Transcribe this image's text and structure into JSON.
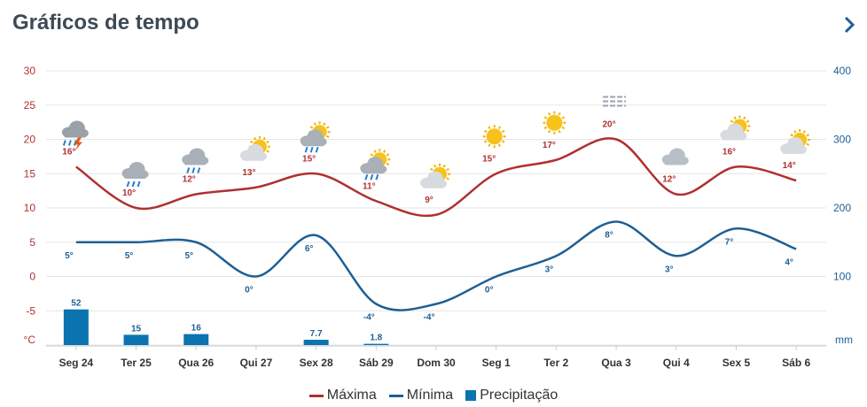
{
  "header": {
    "title": "Gráficos de tempo",
    "next_icon": "chevron-right-icon"
  },
  "colors": {
    "max": "#b03030",
    "min": "#1e5f94",
    "precip": "#0a73b0",
    "grid": "#e6e6e6"
  },
  "chart_data": {
    "type": "line",
    "categories": [
      "Seg 24",
      "Ter 25",
      "Qua 26",
      "Qui 27",
      "Sex 28",
      "Sáb 29",
      "Dom 30",
      "Seg 1",
      "Ter 2",
      "Qua 3",
      "Qui 4",
      "Sex 5",
      "Sáb 6"
    ],
    "left_axis": {
      "unit": "°C",
      "ticks": [
        "30",
        "25",
        "20",
        "15",
        "10",
        "5",
        "0",
        "-5"
      ],
      "ylim": [
        -10,
        30
      ]
    },
    "right_axis": {
      "unit": "mm",
      "ticks": [
        "400",
        "300",
        "200",
        "100"
      ],
      "ylim": [
        0,
        400
      ]
    },
    "grid": true,
    "legend_position": "bottom-center",
    "series": [
      {
        "name": "Máxima",
        "kind": "line",
        "values": [
          16,
          10,
          12,
          13,
          15,
          11,
          9,
          15,
          17,
          20,
          12,
          16,
          14
        ],
        "labels": [
          "16°",
          "10°",
          "12°",
          "13°",
          "15°",
          "11°",
          "9°",
          "15°",
          "17°",
          "20°",
          "12°",
          "16°",
          "14°"
        ]
      },
      {
        "name": "Mínima",
        "kind": "line",
        "values": [
          5,
          5,
          5,
          0,
          6,
          -4,
          -4,
          0,
          3,
          8,
          3,
          7,
          4
        ],
        "labels": [
          "5°",
          "5°",
          "5°",
          "0°",
          "6°",
          "-4°",
          "-4°",
          "0°",
          "3°",
          "8°",
          "3°",
          "7°",
          "4°"
        ]
      },
      {
        "name": "Precipitação",
        "kind": "bar",
        "values": [
          52,
          15,
          16,
          null,
          7.7,
          1.8,
          null,
          null,
          null,
          null,
          null,
          null,
          null
        ],
        "labels": [
          "52",
          "15",
          "16",
          "",
          "7.7",
          "1.8",
          "",
          "",
          "",
          "",
          "",
          "",
          ""
        ]
      }
    ],
    "weather_icons": [
      "storm-rain",
      "rain",
      "rain",
      "partly-sunny",
      "sun-rain",
      "sun-rain",
      "partly-sunny",
      "sun",
      "sun",
      "fog",
      "cloudy",
      "partly-sunny",
      "partly-sunny"
    ]
  },
  "legend": {
    "max": "Máxima",
    "min": "Mínima",
    "precip": "Precipitação"
  }
}
